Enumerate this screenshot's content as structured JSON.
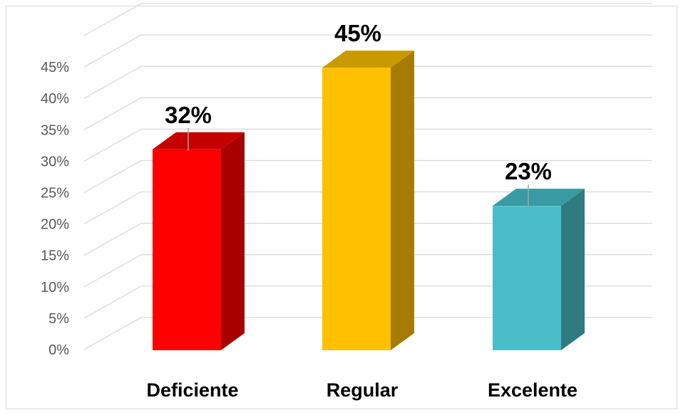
{
  "chart_data": {
    "type": "bar",
    "style": "3d-column",
    "categories": [
      "Deficiente",
      "Regular",
      "Excelente"
    ],
    "values": [
      32,
      45,
      23
    ],
    "data_labels": [
      "32%",
      "45%",
      "23%"
    ],
    "colors": {
      "front": [
        "#ff0000",
        "#ffc000",
        "#4bbdc8"
      ],
      "side": [
        "#a80000",
        "#a67c00",
        "#2e7c82"
      ],
      "top": [
        "#c40000",
        "#c99a00",
        "#3a9aa3"
      ]
    },
    "y_ticks": [
      "0%",
      "5%",
      "10%",
      "15%",
      "20%",
      "25%",
      "30%",
      "35%",
      "40%",
      "45%"
    ],
    "ylim": [
      0,
      50
    ],
    "grid": true,
    "legend": "none",
    "title": "",
    "xlabel": "",
    "ylabel": ""
  }
}
